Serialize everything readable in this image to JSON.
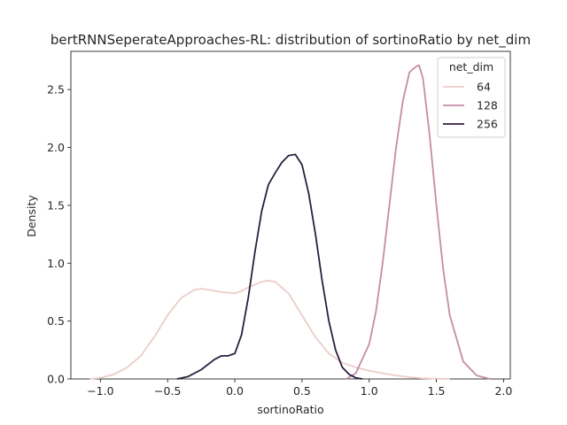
{
  "chart_data": {
    "type": "line",
    "title": "bertRNNSeperateApproaches-RL: distribution of sortinoRatio by net_dim",
    "xlabel": "sortinoRatio",
    "ylabel": "Density",
    "xlim": [
      -1.22,
      2.05
    ],
    "ylim": [
      0,
      2.83
    ],
    "xticks": [
      -1.0,
      -0.5,
      0.0,
      0.5,
      1.0,
      1.5,
      2.0
    ],
    "xtick_labels": [
      "−1.0",
      "−0.5",
      "0.0",
      "0.5",
      "1.0",
      "1.5",
      "2.0"
    ],
    "yticks": [
      0.0,
      0.5,
      1.0,
      1.5,
      2.0,
      2.5
    ],
    "ytick_labels": [
      "0.0",
      "0.5",
      "1.0",
      "1.5",
      "2.0",
      "2.5"
    ],
    "grid": false,
    "legend": {
      "title": "net_dim",
      "position": "top-right"
    },
    "series": [
      {
        "name": "64",
        "color": "#ebcdc9",
        "x": [
          -1.08,
          -1.0,
          -0.9,
          -0.8,
          -0.7,
          -0.6,
          -0.5,
          -0.4,
          -0.3,
          -0.25,
          -0.2,
          -0.1,
          0.0,
          0.05,
          0.1,
          0.2,
          0.25,
          0.3,
          0.4,
          0.5,
          0.6,
          0.7,
          0.8,
          0.9,
          1.0,
          1.1,
          1.2,
          1.3,
          1.4,
          1.5,
          1.6
        ],
        "y": [
          0.0,
          0.01,
          0.04,
          0.1,
          0.2,
          0.36,
          0.55,
          0.7,
          0.77,
          0.78,
          0.77,
          0.75,
          0.74,
          0.76,
          0.79,
          0.84,
          0.85,
          0.84,
          0.74,
          0.55,
          0.36,
          0.22,
          0.14,
          0.1,
          0.07,
          0.05,
          0.03,
          0.015,
          0.006,
          0.002,
          0.0
        ]
      },
      {
        "name": "128",
        "color": "#c58ca6",
        "x": [
          0.83,
          0.9,
          1.0,
          1.05,
          1.1,
          1.15,
          1.2,
          1.25,
          1.3,
          1.35,
          1.37,
          1.4,
          1.45,
          1.5,
          1.55,
          1.6,
          1.7,
          1.8,
          1.9
        ],
        "y": [
          0.0,
          0.05,
          0.3,
          0.58,
          1.0,
          1.5,
          2.0,
          2.4,
          2.65,
          2.7,
          2.71,
          2.6,
          2.1,
          1.5,
          0.95,
          0.55,
          0.15,
          0.03,
          0.0
        ]
      },
      {
        "name": "256",
        "color": "#2d1e3e",
        "x": [
          -0.43,
          -0.35,
          -0.25,
          -0.15,
          -0.1,
          -0.05,
          0.0,
          0.05,
          0.1,
          0.15,
          0.2,
          0.25,
          0.3,
          0.35,
          0.4,
          0.45,
          0.5,
          0.55,
          0.6,
          0.65,
          0.7,
          0.75,
          0.8,
          0.85,
          0.9,
          0.95
        ],
        "y": [
          0.0,
          0.02,
          0.08,
          0.17,
          0.2,
          0.2,
          0.22,
          0.38,
          0.7,
          1.1,
          1.45,
          1.68,
          1.78,
          1.87,
          1.93,
          1.94,
          1.85,
          1.6,
          1.25,
          0.85,
          0.5,
          0.25,
          0.1,
          0.04,
          0.01,
          0.0
        ]
      }
    ]
  }
}
